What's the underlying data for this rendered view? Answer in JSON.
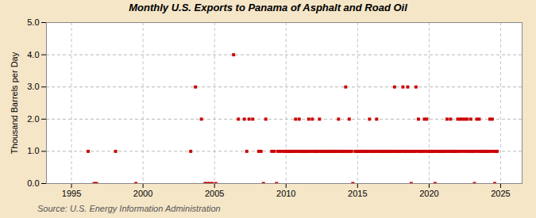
{
  "chart_data": {
    "type": "scatter",
    "title": "Monthly U.S. Exports to Panama of Asphalt and Road Oil",
    "ylabel": "Thousand Barrels per Day",
    "source": "Source: U.S. Energy Information Administration",
    "color": "#cc0000",
    "marker": "square",
    "grid": true,
    "xlim": [
      1993.25,
      2026.5
    ],
    "xticks": [
      1995,
      2000,
      2005,
      2010,
      2015,
      2020,
      2025
    ],
    "ylim": [
      0.0,
      5.0
    ],
    "yticks": [
      {
        "value": 0.0,
        "label": "0.0"
      },
      {
        "value": 1.0,
        "label": "1.0"
      },
      {
        "value": 2.0,
        "label": "2.0"
      },
      {
        "value": 3.0,
        "label": "3.0"
      },
      {
        "value": 4.0,
        "label": "4.0"
      },
      {
        "value": 5.0,
        "label": "5.0"
      }
    ],
    "x": [
      1996.1666666666667,
      1996.5833333333333,
      1996.75,
      1998.0833333333333,
      1999.5,
      2003.3333333333333,
      2003.6666666666667,
      2004.0833333333333,
      2004.3333333333333,
      2004.5,
      2004.6666666666667,
      2004.8333333333333,
      2005.0833333333333,
      2006.3333333333333,
      2006.6666666666667,
      2007.0833333333333,
      2007.25,
      2007.4166666666667,
      2007.6666666666667,
      2008.0833333333333,
      2008.25,
      2008.4166666666667,
      2008.5833333333333,
      2009.0,
      2009.1666666666667,
      2009.3333333333333,
      2009.4166666666667,
      2009.5833333333333,
      2009.75,
      2009.9166666666667,
      2010.0,
      2010.0833333333333,
      2010.1666666666667,
      2010.25,
      2010.3333333333333,
      2010.4166666666667,
      2010.5,
      2010.5833333333333,
      2010.6666666666667,
      2010.75,
      2010.8333333333333,
      2010.9166666666667,
      2011.0,
      2011.0833333333333,
      2011.1666666666667,
      2011.25,
      2011.3333333333333,
      2011.4166666666667,
      2011.5,
      2011.5833333333333,
      2011.6666666666667,
      2011.75,
      2011.8333333333333,
      2011.9166666666667,
      2012.0,
      2012.0833333333333,
      2012.1666666666667,
      2012.25,
      2012.3333333333333,
      2012.4166666666667,
      2012.5,
      2012.5833333333333,
      2012.6666666666667,
      2012.75,
      2012.8333333333333,
      2012.9166666666667,
      2013.0,
      2013.0833333333333,
      2013.1666666666667,
      2013.25,
      2013.3333333333333,
      2013.4166666666667,
      2013.5,
      2013.5833333333333,
      2013.6666666666667,
      2013.75,
      2013.8333333333333,
      2013.9166666666667,
      2014.0,
      2014.0833333333333,
      2014.1666666666667,
      2014.25,
      2014.3333333333333,
      2014.4166666666667,
      2014.5,
      2014.5833333333333,
      2014.6666666666667,
      2014.8333333333333,
      2014.9166666666667,
      2015.0,
      2015.0833333333333,
      2015.1666666666667,
      2015.25,
      2015.3333333333333,
      2015.4166666666667,
      2015.5,
      2015.5833333333333,
      2015.6666666666667,
      2015.75,
      2015.8333333333333,
      2015.9166666666667,
      2016.0,
      2016.0833333333333,
      2016.1666666666667,
      2016.25,
      2016.3333333333333,
      2016.4166666666667,
      2016.5,
      2016.5833333333333,
      2016.6666666666667,
      2016.75,
      2016.8333333333333,
      2016.9166666666667,
      2017.0,
      2017.0833333333333,
      2017.1666666666667,
      2017.25,
      2017.3333333333333,
      2017.4166666666667,
      2017.5,
      2017.5833333333333,
      2017.6666666666667,
      2017.75,
      2017.8333333333333,
      2017.9166666666667,
      2018.0,
      2018.0833333333333,
      2018.1666666666667,
      2018.25,
      2018.3333333333333,
      2018.4166666666667,
      2018.5,
      2018.5833333333333,
      2018.6666666666667,
      2018.75,
      2018.8333333333333,
      2018.9166666666667,
      2019.0,
      2019.0833333333333,
      2019.1666666666667,
      2019.25,
      2019.3333333333333,
      2019.4166666666667,
      2019.5,
      2019.5833333333333,
      2019.6666666666667,
      2019.75,
      2019.8333333333333,
      2019.9166666666667,
      2020.0,
      2020.0833333333333,
      2020.1666666666667,
      2020.25,
      2020.3333333333333,
      2020.4166666666667,
      2020.5,
      2020.5833333333333,
      2020.6666666666667,
      2020.75,
      2020.8333333333333,
      2020.9166666666667,
      2021.0,
      2021.0833333333333,
      2021.1666666666667,
      2021.25,
      2021.3333333333333,
      2021.4166666666667,
      2021.5,
      2021.5833333333333,
      2021.6666666666667,
      2021.75,
      2021.8333333333333,
      2021.9166666666667,
      2022.0,
      2022.0833333333333,
      2022.1666666666667,
      2022.25,
      2022.3333333333333,
      2022.4166666666667,
      2022.5,
      2022.5833333333333,
      2022.6666666666667,
      2022.75,
      2022.8333333333333,
      2022.9166666666667,
      2023.0,
      2023.0833333333333,
      2023.1666666666667,
      2023.25,
      2023.3333333333333,
      2023.4166666666667,
      2023.5,
      2023.5833333333333,
      2023.6666666666667,
      2023.75,
      2023.8333333333333,
      2023.9166666666667,
      2024.0,
      2024.0833333333333,
      2024.1666666666667,
      2024.25,
      2024.3333333333333,
      2024.4166666666667,
      2024.5,
      2024.5833333333333,
      2024.6666666666667,
      2024.75
    ],
    "values": [
      1.0,
      0.0,
      0.0,
      1.0,
      0.0,
      1.0,
      3.0,
      2.0,
      0.0,
      0.0,
      0.0,
      0.0,
      0.0,
      4.0,
      2.0,
      2.0,
      1.0,
      2.0,
      2.0,
      1.0,
      1.0,
      0.0,
      2.0,
      1.0,
      1.0,
      0.0,
      1.0,
      1.0,
      1.0,
      1.0,
      1.0,
      1.0,
      1.0,
      1.0,
      1.0,
      1.0,
      1.0,
      1.0,
      2.0,
      1.0,
      1.0,
      2.0,
      1.0,
      1.0,
      1.0,
      1.0,
      1.0,
      1.0,
      1.0,
      2.0,
      1.0,
      1.0,
      2.0,
      1.0,
      1.0,
      1.0,
      1.0,
      1.0,
      2.0,
      1.0,
      1.0,
      1.0,
      1.0,
      1.0,
      1.0,
      1.0,
      1.0,
      1.0,
      1.0,
      1.0,
      1.0,
      1.0,
      1.0,
      1.0,
      2.0,
      1.0,
      1.0,
      1.0,
      1.0,
      1.0,
      3.0,
      1.0,
      1.0,
      2.0,
      1.0,
      1.0,
      0.0,
      1.0,
      1.0,
      1.0,
      1.0,
      1.0,
      1.0,
      1.0,
      1.0,
      1.0,
      1.0,
      1.0,
      1.0,
      2.0,
      1.0,
      1.0,
      1.0,
      1.0,
      1.0,
      2.0,
      1.0,
      1.0,
      1.0,
      1.0,
      1.0,
      1.0,
      1.0,
      1.0,
      1.0,
      1.0,
      1.0,
      1.0,
      1.0,
      1.0,
      3.0,
      1.0,
      1.0,
      1.0,
      1.0,
      1.0,
      1.0,
      3.0,
      1.0,
      1.0,
      1.0,
      3.0,
      1.0,
      1.0,
      0.0,
      1.0,
      1.0,
      1.0,
      3.0,
      1.0,
      2.0,
      1.0,
      1.0,
      1.0,
      1.0,
      2.0,
      1.0,
      2.0,
      1.0,
      1.0,
      1.0,
      1.0,
      1.0,
      1.0,
      0.0,
      1.0,
      1.0,
      1.0,
      1.0,
      1.0,
      1.0,
      1.0,
      1.0,
      1.0,
      2.0,
      1.0,
      1.0,
      2.0,
      1.0,
      1.0,
      1.0,
      1.0,
      1.0,
      2.0,
      1.0,
      2.0,
      1.0,
      2.0,
      1.0,
      2.0,
      1.0,
      2.0,
      1.0,
      1.0,
      2.0,
      1.0,
      1.0,
      0.0,
      1.0,
      2.0,
      1.0,
      2.0,
      1.0,
      1.0,
      1.0,
      1.0,
      1.0,
      1.0,
      1.0,
      1.0,
      2.0,
      1.0,
      2.0,
      1.0,
      0.0,
      1.0,
      1.0
    ]
  }
}
